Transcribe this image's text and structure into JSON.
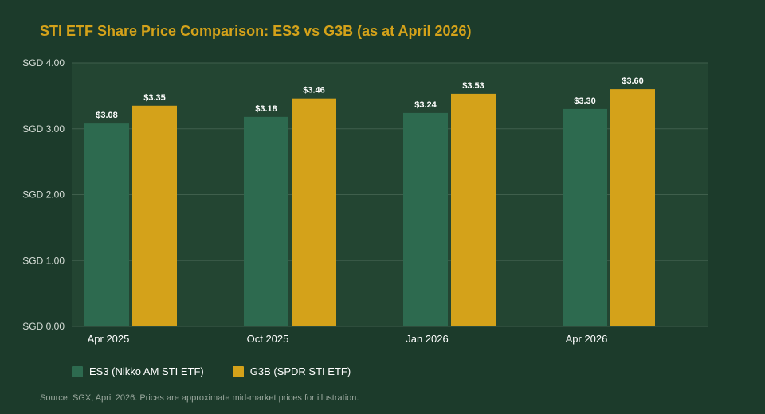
{
  "chart_data": {
    "type": "bar",
    "title": "STI ETF Share Price Comparison: ES3 vs G3B (as at April 2026)",
    "xlabel": "",
    "ylabel": "",
    "categories": [
      "Apr 2025",
      "Oct 2025",
      "Jan 2026",
      "Apr 2026"
    ],
    "series": [
      {
        "name": "ES3 (Nikko AM STI ETF)",
        "values": [
          3.08,
          3.18,
          3.24,
          3.3
        ],
        "labels": [
          "$3.08",
          "$3.18",
          "$3.24",
          "$3.30"
        ],
        "color": "#2d6a4f"
      },
      {
        "name": "G3B (SPDR STI ETF)",
        "values": [
          3.35,
          3.46,
          3.53,
          3.6
        ],
        "labels": [
          "$3.35",
          "$3.46",
          "$3.53",
          "$3.60"
        ],
        "color": "#d4a21a"
      }
    ],
    "ylim": [
      0,
      4
    ],
    "yticks": [
      0,
      1,
      2,
      3,
      4
    ],
    "ytick_labels": [
      "SGD 0.00",
      "SGD 1.00",
      "SGD 2.00",
      "SGD 3.00",
      "SGD 4.00"
    ],
    "grid": true,
    "legend_position": "bottom-left"
  },
  "source_note": "Source: SGX, April 2026. Prices are approximate mid-market prices for illustration.",
  "colors": {
    "background": "#1c3b2b",
    "plot_background": "#234532",
    "title": "#d4a21a",
    "grid": "#3f5f4c",
    "axis_text": "#d8dfd9",
    "bar_label": "#ffffff"
  }
}
